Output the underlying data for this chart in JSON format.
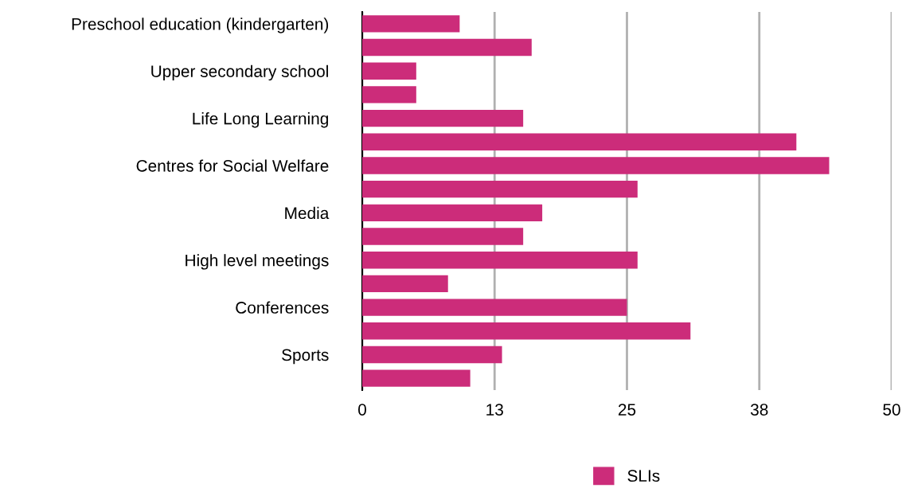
{
  "chart_data": {
    "type": "bar",
    "orientation": "horizontal",
    "categories": [
      "Preschool education (kindergarten)",
      null,
      "Upper secondary school",
      null,
      "Life Long Learning",
      null,
      "Centres for Social Welfare",
      null,
      "Media",
      null,
      "High level meetings",
      null,
      "Conferences",
      null,
      "Sports",
      null
    ],
    "series": [
      {
        "name": "SLIs",
        "color": "#cc2c7a",
        "values": [
          9.2,
          16,
          5.1,
          5.1,
          15.2,
          41,
          44.1,
          26,
          17,
          15.2,
          26,
          8.1,
          25,
          31,
          13.2,
          10.2
        ]
      }
    ],
    "xlim": [
      0,
      50
    ],
    "xticks": [
      0,
      {
        "value": 12.5,
        "label": "13"
      },
      25,
      {
        "value": 37.5,
        "label": "38"
      },
      50
    ],
    "grid": "x",
    "legend": "bottom"
  }
}
